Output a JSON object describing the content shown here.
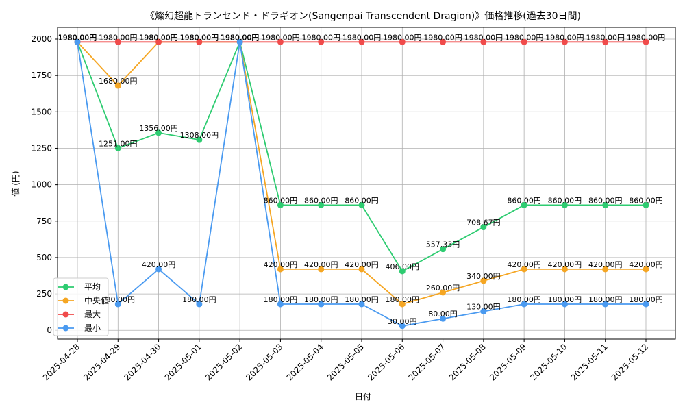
{
  "chart_data": {
    "type": "line",
    "title": "《燦幻超龍トランセンド・ドラギオン(Sangenpai Transcendent Dragion)》価格推移(過去30日間)",
    "xlabel": "日付",
    "ylabel": "値 (円)",
    "ylim": [
      -60,
      2080
    ],
    "yticks": [
      0,
      250,
      500,
      750,
      1000,
      1250,
      1500,
      1750,
      2000
    ],
    "grid": true,
    "legend_position": "lower-left",
    "categories": [
      "2025-04-28",
      "2025-04-29",
      "2025-04-30",
      "2025-05-01",
      "2025-05-02",
      "2025-05-03",
      "2025-05-04",
      "2025-05-05",
      "2025-05-06",
      "2025-05-07",
      "2025-05-08",
      "2025-05-09",
      "2025-05-10",
      "2025-05-11",
      "2025-05-12"
    ],
    "series": [
      {
        "name": "平均",
        "color": "#2ecc71",
        "values": [
          1980,
          1251,
          1356,
          1308,
          1980,
          860,
          860,
          860,
          406,
          557.33,
          708.67,
          860,
          860,
          860,
          860
        ],
        "labels": [
          "1980.00円",
          "1251.00円",
          "1356.00円",
          "1308.00円",
          "1980.00円",
          "860.00円",
          "860.00円",
          "860.00円",
          "406.00円",
          "557.33円",
          "708.67円",
          "860.00円",
          "860.00円",
          "860.00円",
          "860.00円"
        ]
      },
      {
        "name": "中央値",
        "color": "#f5a623",
        "values": [
          1980,
          1680,
          1980,
          1980,
          1980,
          420,
          420,
          420,
          180,
          260,
          340,
          420,
          420,
          420,
          420
        ],
        "labels": [
          "1980.00円",
          "1680.00円",
          "1980.00円",
          "1980.00円",
          "1980.00円",
          "420.00円",
          "420.00円",
          "420.00円",
          "180.00円",
          "260.00円",
          "340.00円",
          "420.00円",
          "420.00円",
          "420.00円",
          "420.00円"
        ]
      },
      {
        "name": "最大",
        "color": "#f04b4b",
        "values": [
          1980,
          1980,
          1980,
          1980,
          1980,
          1980,
          1980,
          1980,
          1980,
          1980,
          1980,
          1980,
          1980,
          1980,
          1980
        ],
        "labels": [
          "1980.00円",
          "1980.00円",
          "1980.00円",
          "1980.00円",
          "1980.00円",
          "1980.00円",
          "1980.00円",
          "1980.00円",
          "1980.00円",
          "1980.00円",
          "1980.00円",
          "1980.00円",
          "1980.00円",
          "1980.00円",
          "1980.00円"
        ]
      },
      {
        "name": "最小",
        "color": "#4a9af0",
        "values": [
          1980,
          180,
          420,
          180,
          1980,
          180,
          180,
          180,
          30,
          80,
          130,
          180,
          180,
          180,
          180
        ],
        "labels": [
          "1980.00円",
          "180.00円",
          "420.00円",
          "180.00円",
          "1980.00円",
          "180.00円",
          "180.00円",
          "180.00円",
          "30.00円",
          "80.00円",
          "130.00円",
          "180.00円",
          "180.00円",
          "180.00円",
          "180.00円"
        ]
      }
    ]
  }
}
